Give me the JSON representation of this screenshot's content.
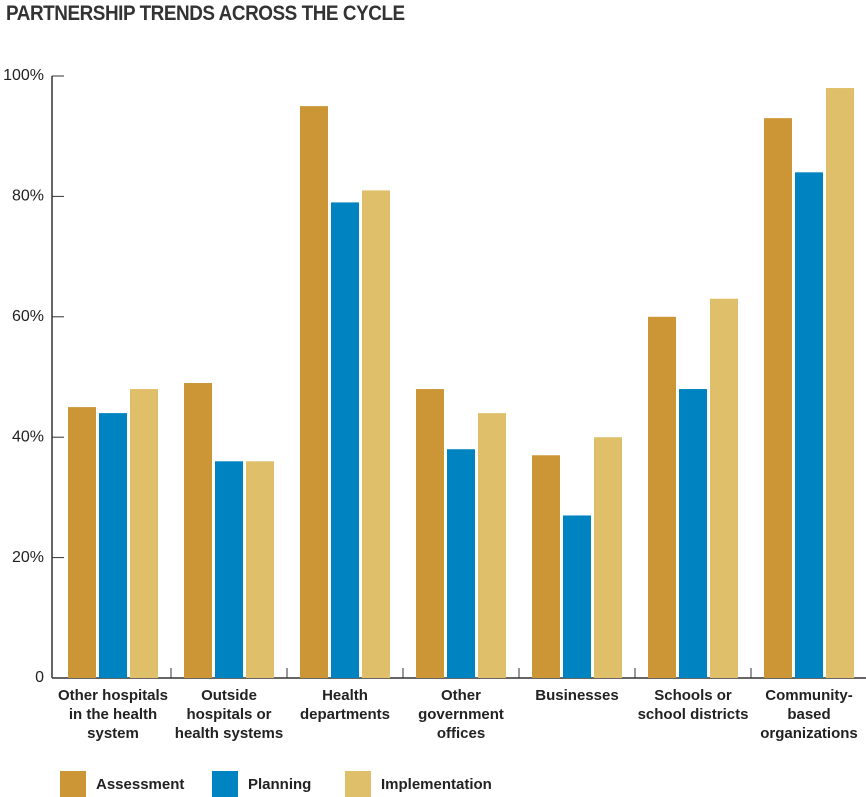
{
  "chart_data": {
    "type": "bar",
    "title": "PARTNERSHIP TRENDS ACROSS THE CYCLE",
    "categories": [
      "Other hospitals in the health system",
      "Outside hospitals or health systems",
      "Health departments",
      "Other government offices",
      "Businesses",
      "Schools or school districts",
      "Community-based organizations"
    ],
    "series": [
      {
        "name": "Assessment",
        "color": "#cc9636",
        "values": [
          45,
          49,
          95,
          48,
          37,
          60,
          93
        ]
      },
      {
        "name": "Planning",
        "color": "#0083c1",
        "values": [
          44,
          36,
          79,
          38,
          27,
          48,
          84
        ]
      },
      {
        "name": "Implementation",
        "color": "#e0bf6a",
        "values": [
          48,
          36,
          81,
          44,
          40,
          63,
          98
        ]
      }
    ],
    "ylim": [
      0,
      100
    ],
    "yticks": [
      0,
      {
        "value": 20,
        "label": "20%"
      },
      {
        "value": 40,
        "label": "40%"
      },
      {
        "value": 60,
        "label": "60%"
      },
      {
        "value": 80,
        "label": "80%"
      },
      {
        "value": 100,
        "label": "100%"
      }
    ],
    "legend": "bottom"
  }
}
